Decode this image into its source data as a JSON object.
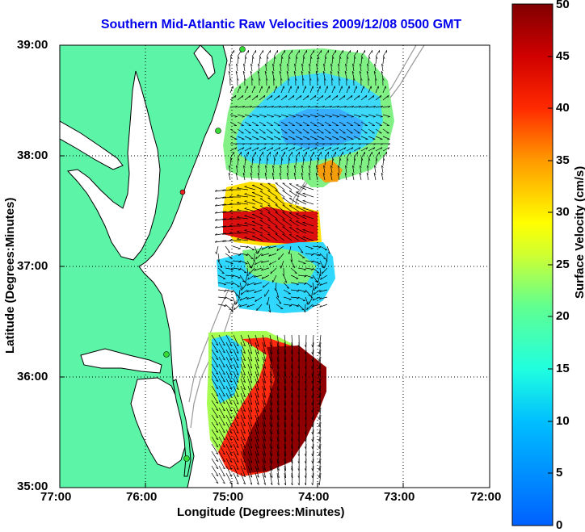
{
  "title": "Southern Mid-Atlantic Raw Velocities 2009/12/08 0500 GMT",
  "xlabel": "Longitude (Degrees:Minutes)",
  "ylabel": "Latitude (Degrees:Minutes)",
  "colorbar": {
    "label": "Surface Velocity (cm/s)",
    "ticks": [
      "0",
      "5",
      "10",
      "15",
      "20",
      "25",
      "30",
      "35",
      "40",
      "45",
      "50"
    ],
    "range": [
      0,
      50
    ],
    "colormap": "jet"
  },
  "x_ticks": [
    "77:00",
    "76:00",
    "75:00",
    "74:00",
    "73:00",
    "72:00"
  ],
  "y_ticks": [
    "39:00",
    "38:00",
    "37:00",
    "36:00",
    "35:00"
  ],
  "colors": {
    "land": "#5cf5a8",
    "coast": "#000000",
    "title": "#0000ee",
    "grid": "#000000",
    "isobath": "#999999",
    "station": "#33dd33",
    "station_highlight": "#ee2222"
  },
  "chart_data": {
    "type": "map",
    "extent": {
      "lon": [
        -77,
        -72
      ],
      "lat": [
        35,
        39
      ]
    },
    "grid": "dotted",
    "vector_field": "surface current arrows colored by speed"
  }
}
